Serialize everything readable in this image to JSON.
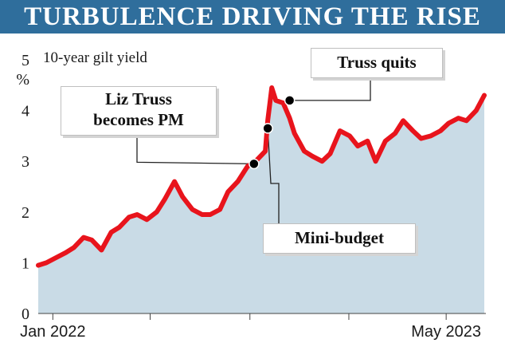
{
  "banner": {
    "title": "TURBULENCE DRIVING THE RISE",
    "color": "#2f6e9c"
  },
  "chart_data": {
    "type": "area",
    "ylabel": "10-year gilt yield",
    "yunit": "%",
    "ylim": [
      0,
      5
    ],
    "yticks": [
      "0",
      "1",
      "2",
      "3",
      "4",
      "5"
    ],
    "xtick_labels": [
      {
        "label": "Jan 2022",
        "date": "2022-01-01"
      },
      {
        "label": "May 2023",
        "date": "2023-05-01"
      }
    ],
    "grid": false,
    "colors": {
      "line": "#e8141c",
      "area": "#c9dbe6",
      "marker": "#000000"
    },
    "series": [
      {
        "x": [
          "2021-12-14",
          "2021-12-24",
          "2022-01-05",
          "2022-01-17",
          "2022-01-27",
          "2022-02-08",
          "2022-02-18",
          "2022-03-02",
          "2022-03-14",
          "2022-03-24",
          "2022-04-05",
          "2022-04-15",
          "2022-04-27",
          "2022-05-09",
          "2022-05-19",
          "2022-05-31",
          "2022-06-10",
          "2022-06-22",
          "2022-07-04",
          "2022-07-14",
          "2022-07-26",
          "2022-08-05",
          "2022-08-17",
          "2022-08-29",
          "2022-09-08",
          "2022-09-20",
          "2022-09-23",
          "2022-09-28",
          "2022-10-03",
          "2022-10-12",
          "2022-10-20",
          "2022-10-26",
          "2022-11-07",
          "2022-11-17",
          "2022-11-29",
          "2022-12-09",
          "2022-12-21",
          "2023-01-02",
          "2023-01-12",
          "2023-01-24",
          "2023-02-03",
          "2023-02-15",
          "2023-02-27",
          "2023-03-09",
          "2023-03-21",
          "2023-03-31",
          "2023-04-12",
          "2023-04-24",
          "2023-05-04",
          "2023-05-16",
          "2023-05-26",
          "2023-06-07",
          "2023-06-17"
        ],
        "values": [
          0.95,
          1.0,
          1.1,
          1.2,
          1.3,
          1.5,
          1.45,
          1.25,
          1.6,
          1.7,
          1.9,
          1.95,
          1.85,
          2.0,
          2.25,
          2.6,
          2.3,
          2.05,
          1.95,
          1.95,
          2.05,
          2.4,
          2.6,
          2.9,
          3.0,
          3.2,
          3.8,
          4.45,
          4.2,
          4.15,
          3.85,
          3.55,
          3.2,
          3.1,
          3.0,
          3.15,
          3.6,
          3.5,
          3.3,
          3.4,
          3.0,
          3.4,
          3.55,
          3.8,
          3.6,
          3.45,
          3.5,
          3.6,
          3.75,
          3.85,
          3.8,
          4.0,
          4.3
        ]
      }
    ],
    "annotations": [
      {
        "text": "Liz Truss becomes PM",
        "lines": [
          "Liz Truss",
          "becomes PM"
        ],
        "date": "2022-09-06",
        "value": 2.95
      },
      {
        "text": "Mini-budget",
        "lines": [
          "Mini-budget"
        ],
        "date": "2022-09-23",
        "value": 3.65
      },
      {
        "text": "Truss quits",
        "lines": [
          "Truss quits"
        ],
        "date": "2022-10-20",
        "value": 4.2
      }
    ]
  }
}
